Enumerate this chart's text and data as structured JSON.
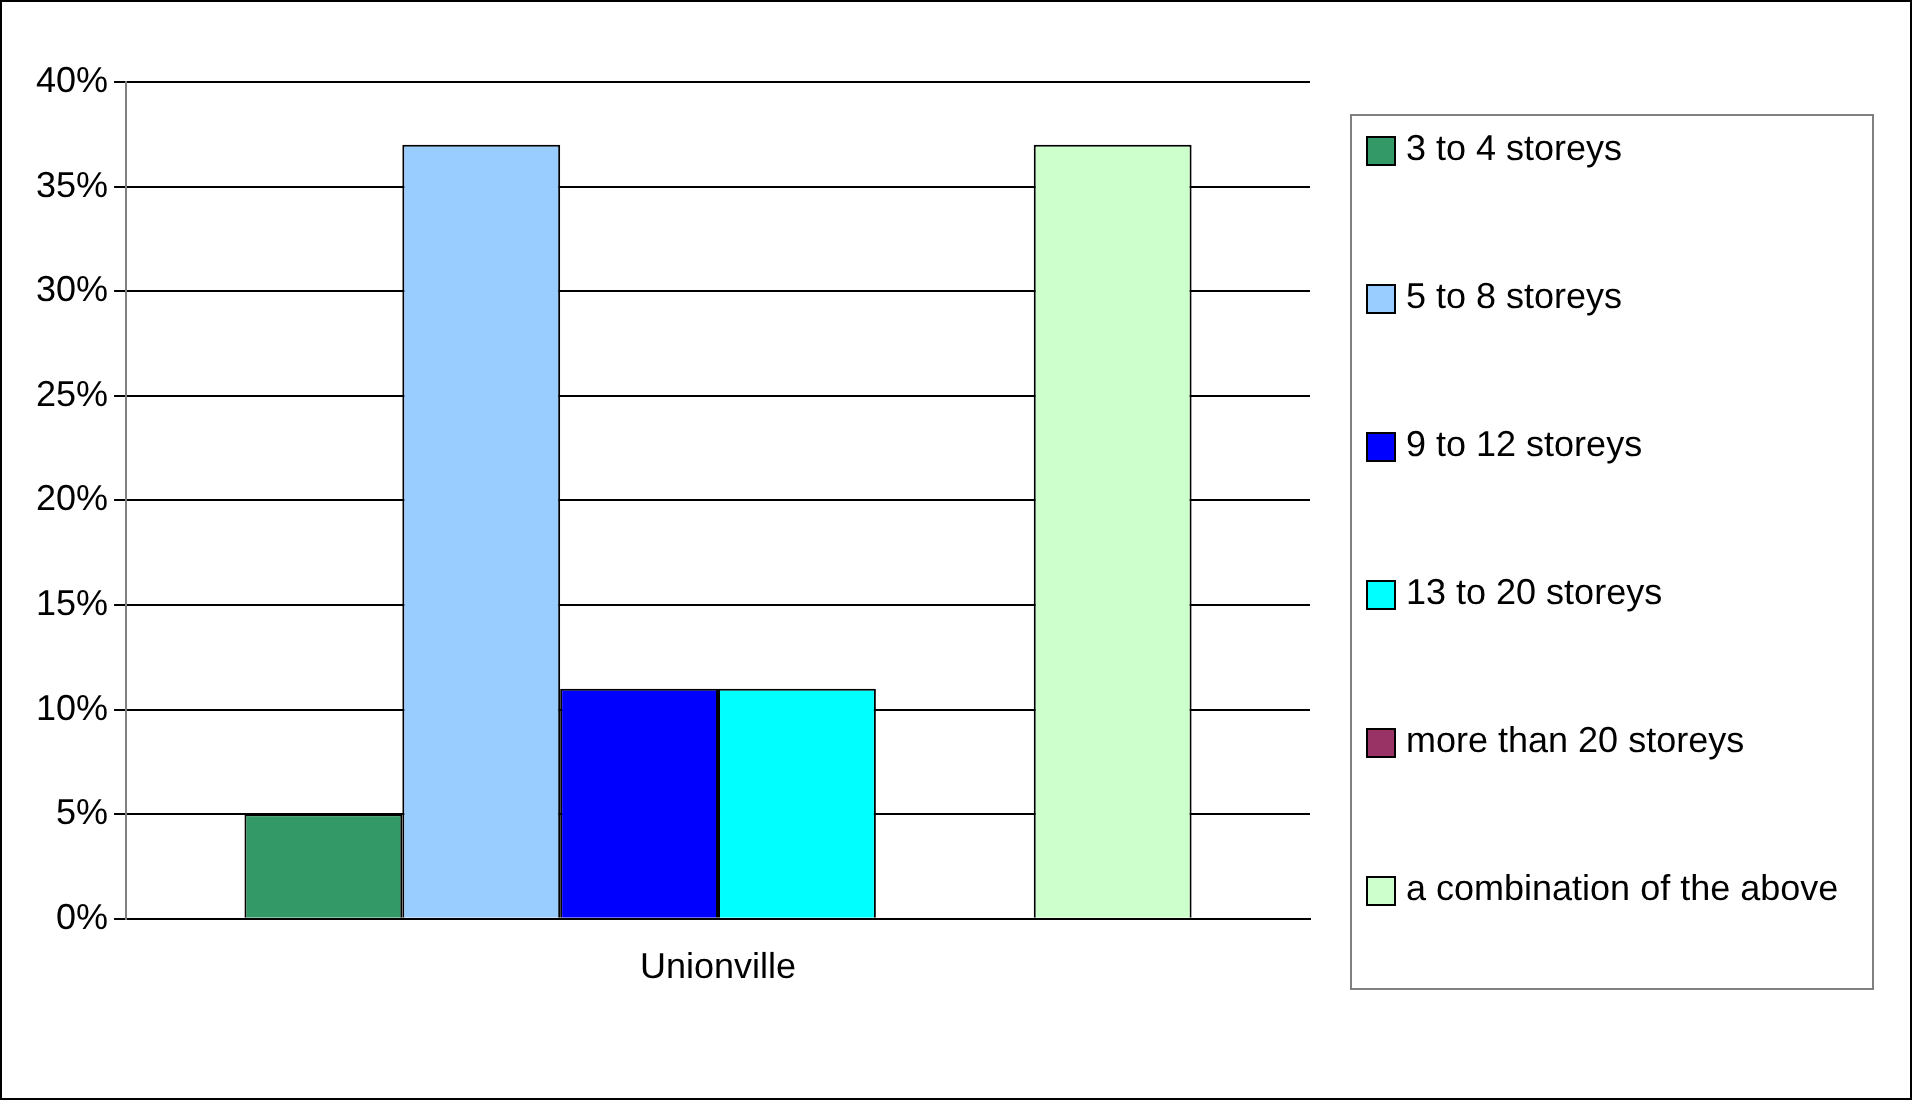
{
  "chart_data": {
    "type": "bar",
    "categories": [
      "Unionville"
    ],
    "series": [
      {
        "name": "3 to 4 storeys",
        "color": "#339966",
        "values": [
          5
        ]
      },
      {
        "name": "5 to 8 storeys",
        "color": "#99ccff",
        "values": [
          37
        ]
      },
      {
        "name": "9 to 12 storeys",
        "color": "#0000ff",
        "values": [
          11
        ]
      },
      {
        "name": "13 to 20 storeys",
        "color": "#00ffff",
        "values": [
          11
        ]
      },
      {
        "name": "more than 20 storeys",
        "color": "#993366",
        "values": [
          0
        ]
      },
      {
        "name": "a combination of the above",
        "color": "#ccffcc",
        "values": [
          37
        ]
      }
    ],
    "ylim": [
      0,
      40
    ],
    "yticks": [
      {
        "value": 0,
        "label": "0%"
      },
      {
        "value": 5,
        "label": "5%"
      },
      {
        "value": 10,
        "label": "10%"
      },
      {
        "value": 15,
        "label": "15%"
      },
      {
        "value": 20,
        "label": "20%"
      },
      {
        "value": 25,
        "label": "25%"
      },
      {
        "value": 30,
        "label": "30%"
      },
      {
        "value": 35,
        "label": "35%"
      },
      {
        "value": 40,
        "label": "40%"
      }
    ],
    "grid": "y",
    "legend": "right"
  }
}
